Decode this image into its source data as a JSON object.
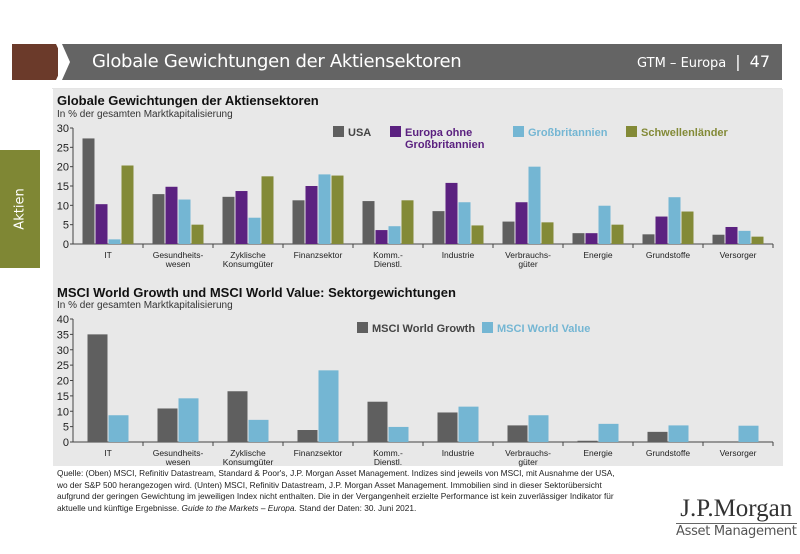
{
  "header": {
    "title": "Globale Gewichtungen der Aktiensektoren",
    "series_name": "GTM – Europa",
    "page_number": "47"
  },
  "side_tab": {
    "label": "Aktien"
  },
  "colors": {
    "usa": "#5f5f5f",
    "europa": "#5b2180",
    "gb": "#74b6d3",
    "em": "#838a37",
    "brand_brown": "#6b3a2a",
    "header_gray": "#646464"
  },
  "chart_data": [
    {
      "type": "bar",
      "title": "Globale Gewichtungen der Aktiensektoren",
      "subtitle": "In % der gesamten Marktkapitalisierung",
      "categories": [
        "IT",
        "Gesundheits-\nwesen",
        "Zyklische\nKonsumgüter",
        "Finanzsektor",
        "Komm.-\nDienstl.",
        "Industrie",
        "Verbrauchs-\ngüter",
        "Energie",
        "Grundstoffe",
        "Versorger"
      ],
      "ylim": [
        0,
        30
      ],
      "yticks": [
        0,
        5,
        10,
        15,
        20,
        25,
        30
      ],
      "grid": false,
      "legend": "top",
      "series": [
        {
          "name": "USA",
          "color": "#5f5f5f",
          "values": [
            27.3,
            12.9,
            12.2,
            11.3,
            11.1,
            8.5,
            5.8,
            2.8,
            2.5,
            2.4
          ]
        },
        {
          "name": "Europa ohne\nGroßbritannien",
          "color": "#5b2180",
          "values": [
            10.3,
            14.8,
            13.7,
            15.0,
            3.6,
            15.8,
            10.8,
            2.8,
            7.1,
            4.4
          ]
        },
        {
          "name": "Großbritannien",
          "color": "#74b6d3",
          "values": [
            1.2,
            11.5,
            6.8,
            18.0,
            4.6,
            10.8,
            20.0,
            9.9,
            12.1,
            3.4
          ]
        },
        {
          "name": "Schwellenländer",
          "color": "#838a37",
          "values": [
            20.3,
            5.0,
            17.5,
            17.7,
            11.3,
            4.8,
            5.6,
            5.0,
            8.4,
            1.9
          ]
        }
      ]
    },
    {
      "type": "bar",
      "title": "MSCI World Growth und MSCI World Value: Sektorgewichtungen",
      "subtitle": "In % der gesamten Marktkapitalisierung",
      "categories": [
        "IT",
        "Gesundheits-\nwesen",
        "Zyklische\nKonsumgüter",
        "Finanzsektor",
        "Komm.-\nDienstl.",
        "Industrie",
        "Verbrauchs-\ngüter",
        "Energie",
        "Grundstoffe",
        "Versorger"
      ],
      "ylim": [
        0,
        40
      ],
      "yticks": [
        0,
        5,
        10,
        15,
        20,
        25,
        30,
        35,
        40
      ],
      "grid": false,
      "legend": "top",
      "series": [
        {
          "name": "MSCI World Growth",
          "color": "#5f5f5f",
          "values": [
            35.0,
            10.9,
            16.5,
            3.9,
            13.1,
            9.6,
            5.4,
            0.4,
            3.3,
            0.2
          ]
        },
        {
          "name": "MSCI World Value",
          "color": "#74b6d3",
          "values": [
            8.7,
            14.2,
            7.2,
            23.3,
            4.9,
            11.5,
            8.7,
            5.9,
            5.4,
            5.3
          ]
        }
      ]
    }
  ],
  "footnote": {
    "text": "Quelle: (Oben) MSCI, Refinitiv Datastream, Standard & Poor's, J.P. Morgan Asset Management. Indizes sind jeweils von MSCI, mit Ausnahme der USA, wo der S&P 500 herangezogen wird. (Unten) MSCI, Refinitiv Datastream, J.P. Morgan Asset Management. Immobilien sind in dieser Sektorübersicht aufgrund der geringen Gewichtung im jeweiligen Index nicht enthalten. Die in der Vergangenheit erzielte Performance ist kein zuverlässiger Indikator für aktuelle und künftige Ergebnisse.",
    "guide": "Guide to the Markets – Europa.",
    "date": "Stand der Daten: 30. Juni 2021."
  },
  "logo": {
    "line1": "J.P.Morgan",
    "line2": "Asset Management"
  }
}
